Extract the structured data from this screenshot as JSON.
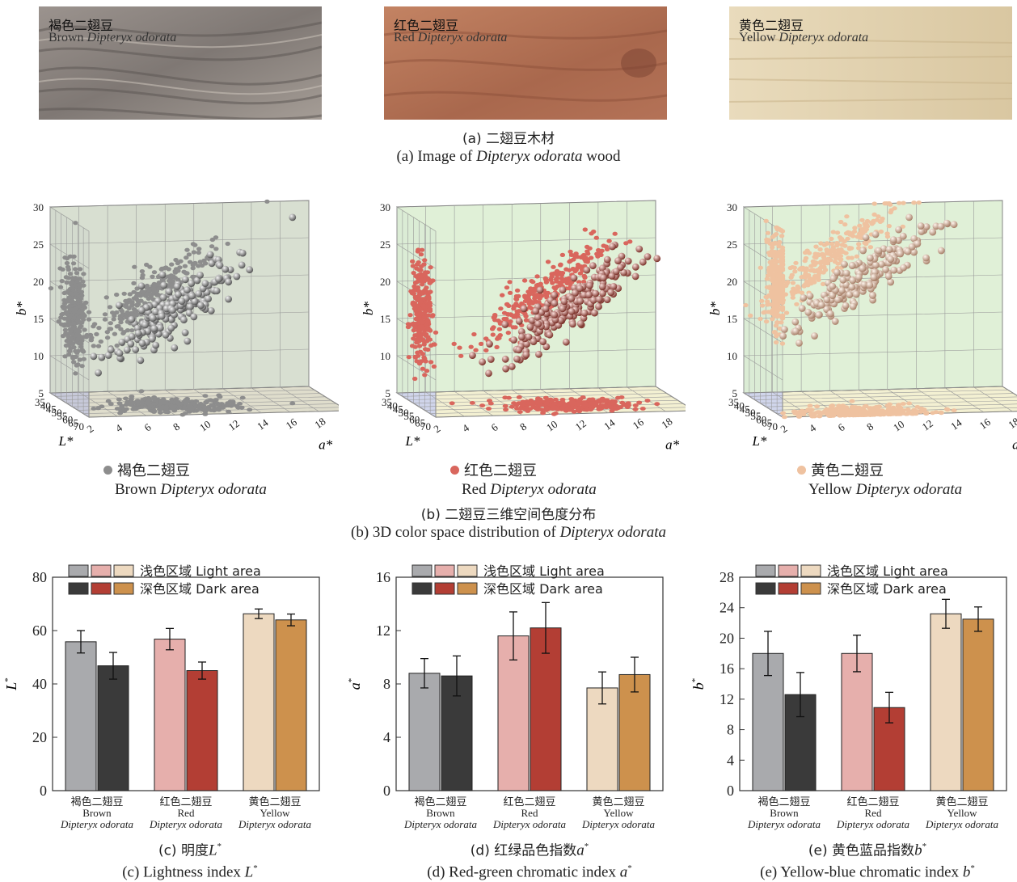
{
  "wood_panels": [
    {
      "cn": "褐色二翅豆",
      "en": "Brown Dipteryx odorata",
      "en_a": "Brown ",
      "en_i": "Dipteryx odorata"
    },
    {
      "cn": "红色二翅豆",
      "en": "Red Dipteryx odorata",
      "en_a": "Red ",
      "en_i": "Dipteryx odorata"
    },
    {
      "cn": "黄色二翅豆",
      "en": "Yellow Dipteryx odorata",
      "en_a": "Yellow ",
      "en_i": "Dipteryx odorata"
    }
  ],
  "captions": {
    "a_cn": "(a) 二翅豆木材",
    "a_en_pre": "(a) Image of ",
    "a_en_i": "Dipteryx odorata",
    "a_en_post": " wood",
    "b_cn": "(b) 二翅豆三维空间色度分布",
    "b_en_pre": "(b) 3D color space distribution of ",
    "b_en_i": "Dipteryx odorata",
    "c_cn": "(c) 明度",
    "c_cn_v": "L",
    "c_en_pre": "(c) Lightness index ",
    "c_en_v": "L",
    "d_cn": "(d) 红绿品色指数",
    "d_cn_v": "a",
    "d_en_pre": "(d) Red-green chromatic index ",
    "d_en_v": "a",
    "e_cn": "(e) 黄色蓝品指数",
    "e_cn_v": "b",
    "e_en_pre": "(e) Yellow-blue chromatic index ",
    "e_en_v": "b",
    "star": "*"
  },
  "legend3d": [
    {
      "cn": "褐色二翅豆",
      "en_a": "Brown ",
      "en_i": "Dipteryx odorata"
    },
    {
      "cn": "红色二翅豆",
      "en_a": "Red ",
      "en_i": "Dipteryx odorata"
    },
    {
      "cn": "黄色二翅豆",
      "en_a": "Yellow ",
      "en_i": "Dipteryx odorata"
    }
  ],
  "bar_legend": {
    "light": "浅色区域 Light area",
    "dark": "深色区域 Dark area"
  },
  "colors": {
    "brown_light": "#a9aaad",
    "brown_dark": "#3a3a3a",
    "red_light": "#e6afac",
    "red_dark": "#b33e34",
    "yellow_light": "#edd9c0",
    "yellow_dark": "#cd914d"
  },
  "chart_data": [
    {
      "type": "scatter",
      "title": "3D color space distribution",
      "xlabel": "L*",
      "ylabel": "a*",
      "zlabel": "b*",
      "xlim": [
        35,
        70
      ],
      "ylim": [
        2,
        20
      ],
      "zlim": [
        5,
        30
      ],
      "x_ticks": [
        35,
        40,
        45,
        50,
        55,
        60,
        65,
        70
      ],
      "y_ticks": [
        2,
        4,
        6,
        8,
        10,
        12,
        14,
        16,
        18,
        20
      ],
      "z_ticks": [
        5,
        10,
        15,
        20,
        25,
        30
      ],
      "series": [
        {
          "name": "褐色二翅豆 Brown Dipteryx odorata",
          "color": "#9a9a9a",
          "center": {
            "L": 56,
            "a": 9,
            "b": 18
          }
        },
        {
          "name": "红色二翅豆 Red Dipteryx odorata",
          "color": "#d9665d",
          "center": {
            "L": 57,
            "a": 12,
            "b": 18
          }
        },
        {
          "name": "黄色二翅豆 Yellow Dipteryx odorata",
          "color": "#efc2a0",
          "center": {
            "L": 66,
            "a": 8,
            "b": 23
          }
        }
      ]
    },
    {
      "type": "bar",
      "title": "Lightness index L*",
      "ylabel": "L*",
      "ylim": [
        0,
        80
      ],
      "yticks": [
        0,
        20,
        40,
        60,
        80
      ],
      "categories": [
        "褐色二翅豆 Brown Dipteryx odorata",
        "红色二翅豆 Red Dipteryx odorata",
        "黄色二翅豆 Yellow Dipteryx odorata"
      ],
      "series": [
        {
          "name": "浅色区域 Light area",
          "values": [
            55.8,
            56.8,
            66.3
          ],
          "errors": [
            4.2,
            4.0,
            1.8
          ]
        },
        {
          "name": "深色区域 Dark area",
          "values": [
            46.8,
            45.0,
            64.0
          ],
          "errors": [
            5.0,
            3.2,
            2.2
          ]
        }
      ]
    },
    {
      "type": "bar",
      "title": "Red-green chromatic index a*",
      "ylabel": "a*",
      "ylim": [
        0,
        16
      ],
      "yticks": [
        0,
        4,
        8,
        12,
        16
      ],
      "categories": [
        "褐色二翅豆 Brown Dipteryx odorata",
        "红色二翅豆 Red Dipteryx odorata",
        "黄色二翅豆 Yellow Dipteryx odorata"
      ],
      "series": [
        {
          "name": "浅色区域 Light area",
          "values": [
            8.8,
            11.6,
            7.7
          ],
          "errors": [
            1.1,
            1.8,
            1.2
          ]
        },
        {
          "name": "深色区域 Dark area",
          "values": [
            8.6,
            12.2,
            8.7
          ],
          "errors": [
            1.5,
            1.9,
            1.3
          ]
        }
      ]
    },
    {
      "type": "bar",
      "title": "Yellow-blue chromatic index b*",
      "ylabel": "b*",
      "ylim": [
        0,
        28
      ],
      "yticks": [
        0,
        4,
        8,
        12,
        16,
        20,
        24,
        28
      ],
      "categories": [
        "褐色二翅豆 Brown Dipteryx odorata",
        "红色二翅豆 Red Dipteryx odorata",
        "黄色二翅豆 Yellow Dipteryx odorata"
      ],
      "series": [
        {
          "name": "浅色区域 Light area",
          "values": [
            18.0,
            18.0,
            23.2
          ],
          "errors": [
            2.9,
            2.4,
            1.9
          ]
        },
        {
          "name": "深色区域 Dark area",
          "values": [
            12.6,
            10.9,
            22.5
          ],
          "errors": [
            2.9,
            2.0,
            1.6
          ]
        }
      ]
    }
  ],
  "bar_category_labels": [
    {
      "cn": "褐色二翅豆",
      "en": "Brown",
      "sp": "Dipteryx odorata"
    },
    {
      "cn": "红色二翅豆",
      "en": "Red",
      "sp": "Dipteryx odorata"
    },
    {
      "cn": "黄色二翅豆",
      "en": "Yellow",
      "sp": "Dipteryx odorata"
    }
  ]
}
